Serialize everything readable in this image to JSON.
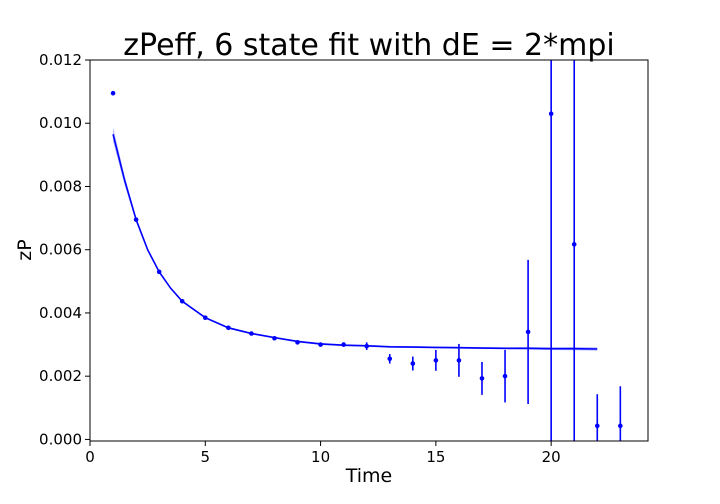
{
  "chart_data": {
    "type": "scatter",
    "title": "zPeff, 6 state fit with dE = 2*mpi",
    "xlabel": "Time",
    "ylabel": "zP",
    "xlim": [
      0,
      24.2
    ],
    "ylim": [
      -5e-05,
      0.012
    ],
    "xticks": [
      0,
      5,
      10,
      15,
      20
    ],
    "xtick_labels": [
      "0",
      "5",
      "10",
      "15",
      "20"
    ],
    "yticks": [
      0.0,
      0.002,
      0.004,
      0.006,
      0.008,
      0.01,
      0.012
    ],
    "ytick_labels": [
      "0.000",
      "0.002",
      "0.004",
      "0.006",
      "0.008",
      "0.010",
      "0.012"
    ],
    "grid": false,
    "color": "#0000ff",
    "points": [
      {
        "x": 1,
        "y": 0.01095,
        "err": 2e-05
      },
      {
        "x": 2,
        "y": 0.00695,
        "err": 2e-05
      },
      {
        "x": 3,
        "y": 0.0053,
        "err": 2e-05
      },
      {
        "x": 4,
        "y": 0.00437,
        "err": 2e-05
      },
      {
        "x": 5,
        "y": 0.00385,
        "err": 2e-05
      },
      {
        "x": 6,
        "y": 0.00353,
        "err": 2e-05
      },
      {
        "x": 7,
        "y": 0.00335,
        "err": 3e-05
      },
      {
        "x": 8,
        "y": 0.0032,
        "err": 3e-05
      },
      {
        "x": 9,
        "y": 0.00307,
        "err": 4e-05
      },
      {
        "x": 10,
        "y": 0.003,
        "err": 5e-05
      },
      {
        "x": 11,
        "y": 0.003,
        "err": 7e-05
      },
      {
        "x": 12,
        "y": 0.00295,
        "err": 0.00012
      },
      {
        "x": 13,
        "y": 0.00255,
        "err": 0.00015
      },
      {
        "x": 14,
        "y": 0.0024,
        "err": 0.00022
      },
      {
        "x": 15,
        "y": 0.0025,
        "err": 0.00033
      },
      {
        "x": 16,
        "y": 0.0025,
        "err": 0.00052
      },
      {
        "x": 17,
        "y": 0.00193,
        "err": 0.00052
      },
      {
        "x": 18,
        "y": 0.002,
        "err": 0.00083
      },
      {
        "x": 19,
        "y": 0.0034,
        "err": 0.00228
      },
      {
        "x": 20,
        "y": 0.0103,
        "err": 0.011
      },
      {
        "x": 21,
        "y": 0.00617,
        "err": 0.011
      },
      {
        "x": 22,
        "y": 0.00043,
        "err": 0.001
      },
      {
        "x": 23,
        "y": 0.00043,
        "err": 0.00125
      }
    ],
    "fit": {
      "x": [
        1,
        1.5,
        2,
        2.5,
        3,
        3.5,
        4,
        5,
        6,
        7,
        8,
        9,
        10,
        11,
        12,
        13,
        14,
        15,
        16,
        17,
        18,
        19,
        20,
        21,
        22
      ],
      "y": [
        0.00965,
        0.0082,
        0.00695,
        0.006,
        0.0053,
        0.00478,
        0.00437,
        0.00385,
        0.00353,
        0.00335,
        0.00322,
        0.0031,
        0.00302,
        0.00298,
        0.00296,
        0.00293,
        0.00292,
        0.00291,
        0.0029,
        0.00289,
        0.00288,
        0.00288,
        0.00287,
        0.00287,
        0.00286
      ],
      "band": [
        0.00022,
        0.00014,
        8e-05,
        5e-05,
        4e-05,
        3e-05,
        3e-05,
        3e-05,
        3e-05,
        3e-05,
        3e-05,
        3e-05,
        3e-05,
        3e-05,
        3e-05,
        3e-05,
        3e-05,
        3e-05,
        3e-05,
        3e-05,
        3e-05,
        4e-05,
        4e-05,
        5e-05,
        5e-05
      ]
    }
  }
}
